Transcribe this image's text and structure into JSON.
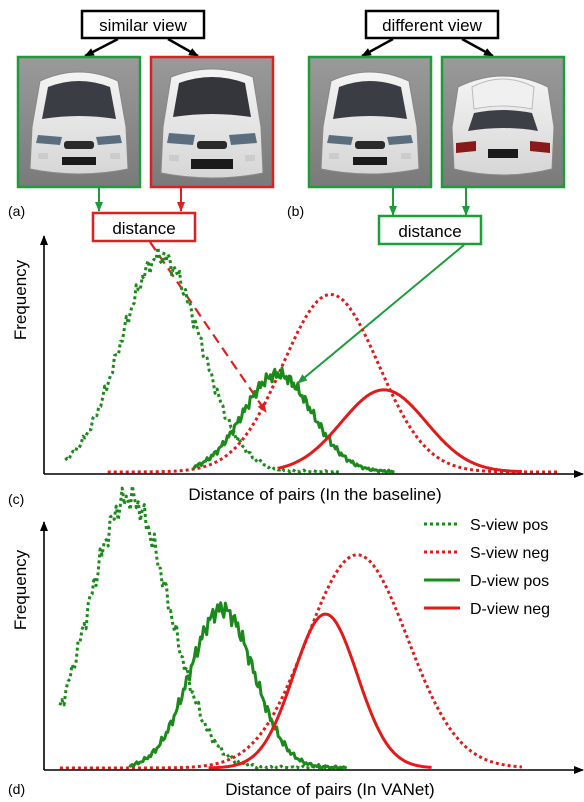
{
  "panel_top": {
    "similar_view_label": "similar view",
    "different_view_label": "different view",
    "distance_label_left": "distance",
    "distance_label_right": "distance",
    "tag_a": "(a)",
    "tag_b": "(b)",
    "images": [
      {
        "id": "car-front-1",
        "view": "front",
        "border_color": "#1e9c3c"
      },
      {
        "id": "car-front-2",
        "view": "front",
        "border_color": "#e02020"
      },
      {
        "id": "car-front-3",
        "view": "front",
        "border_color": "#1e9c3c"
      },
      {
        "id": "car-rear",
        "view": "rear",
        "border_color": "#1e9c3c"
      }
    ]
  },
  "colors": {
    "green": "#1a8a1a",
    "red": "#e41a1a",
    "box_green": "#1e9c3c",
    "box_red": "#e02020"
  },
  "chart_data": [
    {
      "type": "line",
      "tag": "(c)",
      "xlabel": "Distance of pairs (In the baseline)",
      "ylabel": "Frequency",
      "grid": false,
      "legend": "none",
      "x_range": [
        0,
        1
      ],
      "y_range": [
        0,
        1
      ],
      "series": [
        {
          "key": "s_pos",
          "color": "#1a8a1a",
          "dash": "dotted",
          "mean": 0.22,
          "sd": 0.075,
          "peak": 0.97,
          "x_min": 0.04,
          "x_max": 0.56,
          "jitter": 0.05
        },
        {
          "key": "s_neg",
          "color": "#e41a1a",
          "dash": "dotted",
          "mean": 0.54,
          "sd": 0.09,
          "peak": 0.8,
          "x_min": 0.12,
          "x_max": 0.97,
          "jitter": 0.0
        },
        {
          "key": "d_pos",
          "color": "#1a8a1a",
          "dash": "solid",
          "mean": 0.44,
          "sd": 0.065,
          "peak": 0.44,
          "x_min": 0.28,
          "x_max": 0.66,
          "jitter": 0.05
        },
        {
          "key": "d_neg",
          "color": "#e41a1a",
          "dash": "solid",
          "mean": 0.64,
          "sd": 0.08,
          "peak": 0.37,
          "x_min": 0.44,
          "x_max": 0.9,
          "jitter": 0.0
        }
      ]
    },
    {
      "type": "line",
      "tag": "(d)",
      "xlabel": "Distance of pairs (In VANet)",
      "ylabel": "Frequency",
      "grid": false,
      "legend": "top-right",
      "x_range": [
        0,
        1
      ],
      "y_range": [
        0,
        1
      ],
      "series": [
        {
          "key": "s_pos",
          "name": "S-view pos",
          "color": "#1a8a1a",
          "dash": "dotted",
          "mean": 0.16,
          "sd": 0.075,
          "peak": 1.0,
          "x_min": 0.03,
          "x_max": 0.56,
          "jitter": 0.06
        },
        {
          "key": "s_neg",
          "name": "S-view neg",
          "color": "#e41a1a",
          "dash": "dotted",
          "mean": 0.59,
          "sd": 0.095,
          "peak": 0.79,
          "x_min": 0.03,
          "x_max": 0.9,
          "jitter": 0.0
        },
        {
          "key": "d_pos",
          "name": "D-view pos",
          "color": "#1a8a1a",
          "dash": "solid",
          "mean": 0.335,
          "sd": 0.06,
          "peak": 0.59,
          "x_min": 0.16,
          "x_max": 0.57,
          "jitter": 0.05
        },
        {
          "key": "d_neg",
          "name": "D-view neg",
          "color": "#e41a1a",
          "dash": "solid",
          "mean": 0.53,
          "sd": 0.06,
          "peak": 0.57,
          "x_min": 0.31,
          "x_max": 0.73,
          "jitter": 0.0
        }
      ]
    }
  ]
}
